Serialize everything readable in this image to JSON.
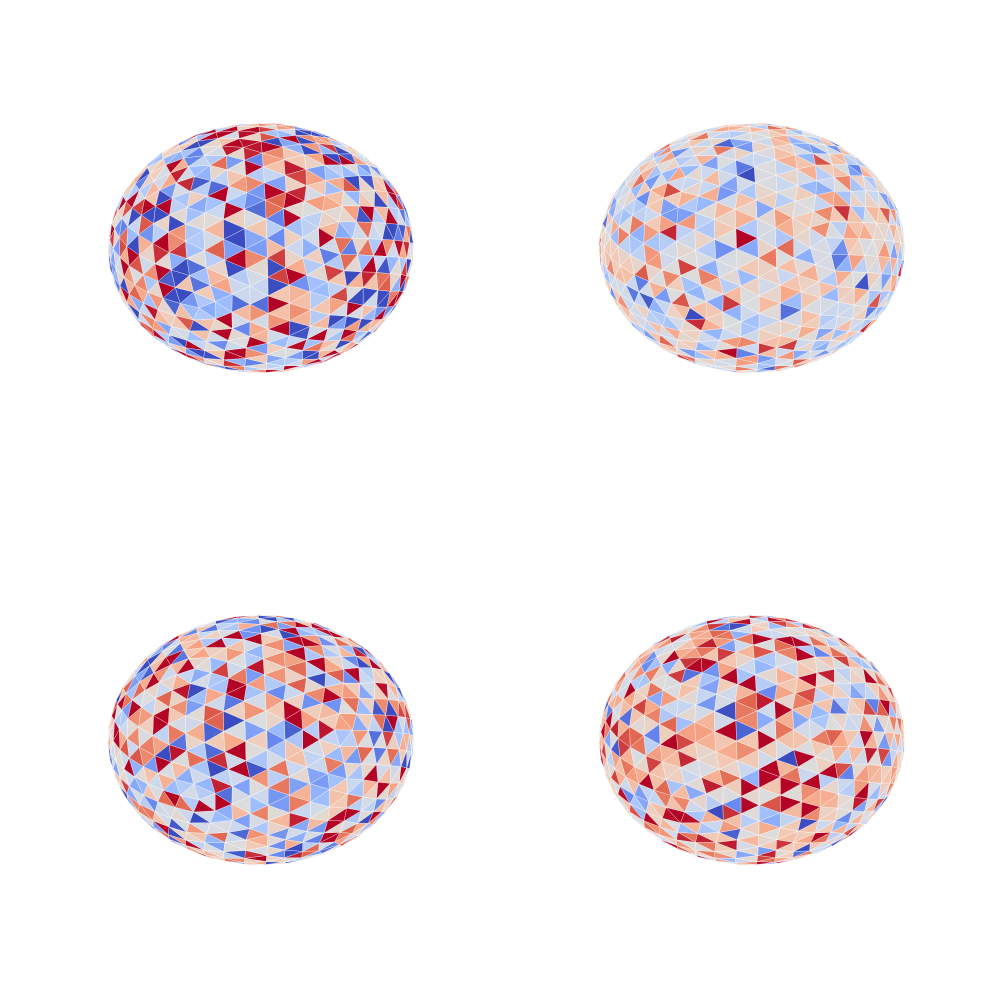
{
  "figure": {
    "background": "#ffffff",
    "colormap": "coolwarm",
    "colormap_stops": [
      "#3b4cc0",
      "#6788ee",
      "#9abbff",
      "#c9d7f0",
      "#dddcdc",
      "#f2cbb7",
      "#f7a889",
      "#e26952",
      "#b40426"
    ],
    "edge_color": "#ffffff",
    "panels": [
      {
        "row": 1,
        "col": 1,
        "contrast": 1.0,
        "bias": 0.0,
        "seed": 11
      },
      {
        "row": 1,
        "col": 2,
        "contrast": 0.55,
        "bias": 0.0,
        "seed": 23
      },
      {
        "row": 2,
        "col": 1,
        "contrast": 0.95,
        "bias": 0.04,
        "seed": 37
      },
      {
        "row": 2,
        "col": 2,
        "contrast": 0.7,
        "bias": 0.12,
        "seed": 53
      }
    ]
  }
}
